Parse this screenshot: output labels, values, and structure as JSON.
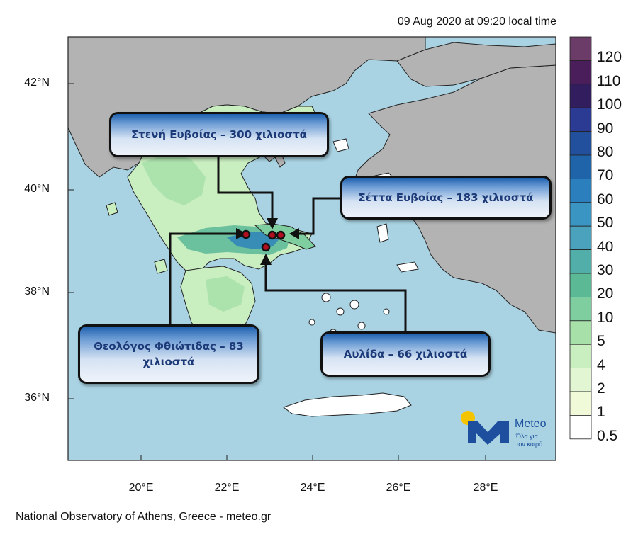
{
  "header": {
    "timestamp": "09 Aug 2020 at 09:20 local time"
  },
  "axes": {
    "lat_labels": [
      "42°N",
      "40°N",
      "38°N",
      "36°N"
    ],
    "lon_labels": [
      "20°E",
      "22°E",
      "24°E",
      "26°E",
      "28°E"
    ]
  },
  "colorbar": {
    "labels": [
      "120",
      "110",
      "100",
      "90",
      "80",
      "70",
      "60",
      "50",
      "40",
      "30",
      "20",
      "10",
      "5",
      "4",
      "2",
      "1",
      "0.5"
    ],
    "colors": [
      "#6b3c68",
      "#4a1e5a",
      "#321d5e",
      "#2b3b94",
      "#23509c",
      "#1f64a8",
      "#2a7fbc",
      "#3b95c2",
      "#4aa2bd",
      "#52aea8",
      "#5bb996",
      "#7fcea0",
      "#a8e0aa",
      "#c9eec0",
      "#e3f6d3",
      "#f0f9d8",
      "#ffffff"
    ]
  },
  "callouts": {
    "steni": "Στενή Ευβοίας – 300 χιλιοστά",
    "setta": "Σέττα Ευβοίας – 183 χιλιοστά",
    "theologos": "Θεολόγος Φθιώτιδας – 83 χιλιοστά",
    "avlida": "Αυλίδα – 66 χιλιοστά"
  },
  "logo": {
    "name": "Meteo",
    "tagline_1": "Όλα για",
    "tagline_2": "τον καιρό",
    "accent_color": "#f5c400",
    "brand_color": "#1d4f9e"
  },
  "footer": {
    "credit": "National Observatory of Athens, Greece - meteo.gr"
  },
  "colors": {
    "sea": "#a9d3e3",
    "land_outside": "#b3b3b3",
    "arrow": "#111111",
    "marker": "#b01020"
  }
}
